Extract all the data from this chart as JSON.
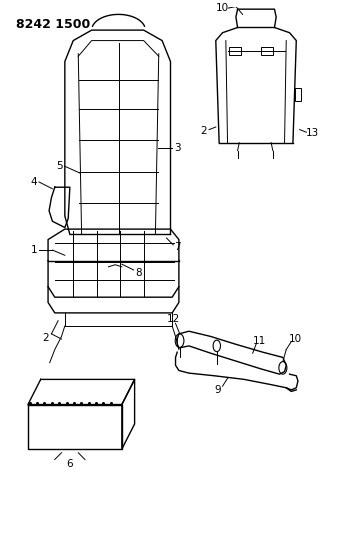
{
  "title": "8242 1500",
  "bg_color": "#ffffff",
  "line_color": "#000000",
  "label_color": "#000000",
  "title_fontsize": 9,
  "label_fontsize": 7.5,
  "figsize": [
    3.41,
    5.33
  ],
  "dpi": 100
}
